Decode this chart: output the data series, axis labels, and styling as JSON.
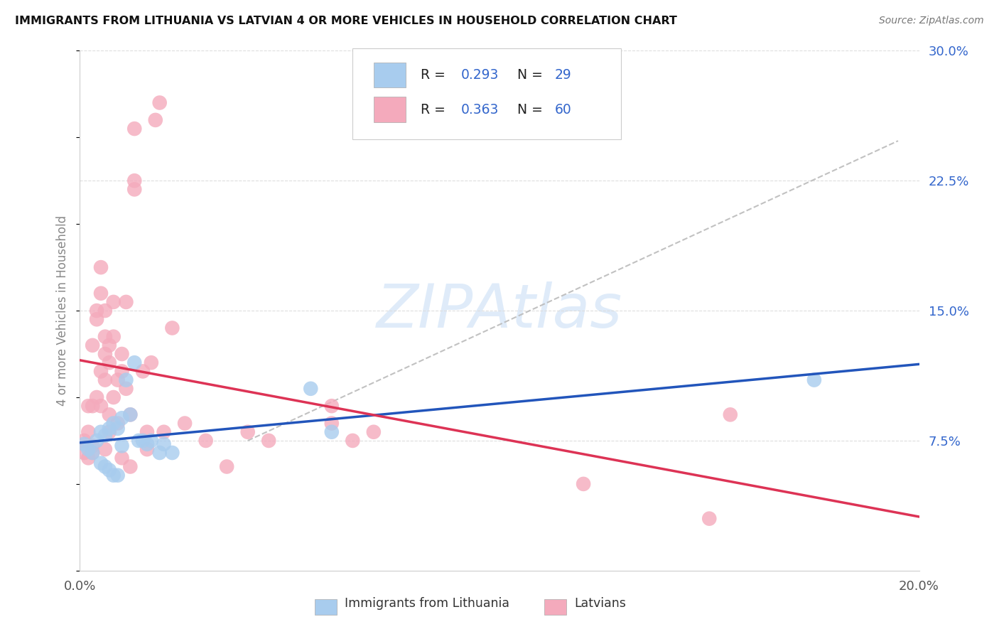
{
  "title": "IMMIGRANTS FROM LITHUANIA VS LATVIAN 4 OR MORE VEHICLES IN HOUSEHOLD CORRELATION CHART",
  "source": "Source: ZipAtlas.com",
  "ylabel": "4 or more Vehicles in Household",
  "xlim": [
    0.0,
    0.2
  ],
  "ylim": [
    0.0,
    0.3
  ],
  "xticks": [
    0.0,
    0.05,
    0.1,
    0.15,
    0.2
  ],
  "xtick_labels": [
    "0.0%",
    "",
    "",
    "",
    "20.0%"
  ],
  "yticks_right": [
    0.075,
    0.15,
    0.225,
    0.3
  ],
  "ytick_labels_right": [
    "7.5%",
    "15.0%",
    "22.5%",
    "30.0%"
  ],
  "blue_label": "Immigrants from Lithuania",
  "pink_label": "Latvians",
  "blue_R": "0.293",
  "blue_N": "29",
  "pink_R": "0.363",
  "pink_N": "60",
  "blue_color": "#A8CCEE",
  "pink_color": "#F4AABC",
  "blue_line_color": "#2255BB",
  "pink_line_color": "#DD3355",
  "stat_text_color": "#3366CC",
  "watermark": "ZIPAtlas",
  "dash_color": "#BBBBBB",
  "blue_x": [
    0.001,
    0.002,
    0.003,
    0.004,
    0.005,
    0.005,
    0.006,
    0.006,
    0.007,
    0.007,
    0.008,
    0.008,
    0.009,
    0.009,
    0.01,
    0.01,
    0.011,
    0.012,
    0.013,
    0.014,
    0.015,
    0.016,
    0.017,
    0.019,
    0.02,
    0.022,
    0.055,
    0.06,
    0.175
  ],
  "blue_y": [
    0.073,
    0.07,
    0.068,
    0.075,
    0.08,
    0.062,
    0.078,
    0.06,
    0.082,
    0.058,
    0.085,
    0.055,
    0.082,
    0.055,
    0.088,
    0.072,
    0.11,
    0.09,
    0.12,
    0.075,
    0.075,
    0.073,
    0.075,
    0.068,
    0.073,
    0.068,
    0.105,
    0.08,
    0.11
  ],
  "pink_x": [
    0.001,
    0.001,
    0.002,
    0.002,
    0.002,
    0.003,
    0.003,
    0.003,
    0.003,
    0.004,
    0.004,
    0.004,
    0.005,
    0.005,
    0.005,
    0.005,
    0.006,
    0.006,
    0.006,
    0.006,
    0.006,
    0.007,
    0.007,
    0.007,
    0.007,
    0.008,
    0.008,
    0.008,
    0.009,
    0.009,
    0.01,
    0.01,
    0.01,
    0.011,
    0.011,
    0.012,
    0.012,
    0.013,
    0.013,
    0.013,
    0.015,
    0.016,
    0.016,
    0.017,
    0.018,
    0.019,
    0.02,
    0.022,
    0.025,
    0.03,
    0.035,
    0.04,
    0.045,
    0.06,
    0.06,
    0.065,
    0.07,
    0.12,
    0.15,
    0.155
  ],
  "pink_y": [
    0.075,
    0.068,
    0.08,
    0.065,
    0.095,
    0.072,
    0.068,
    0.13,
    0.095,
    0.1,
    0.15,
    0.145,
    0.115,
    0.095,
    0.16,
    0.175,
    0.135,
    0.125,
    0.11,
    0.15,
    0.07,
    0.13,
    0.12,
    0.09,
    0.08,
    0.135,
    0.155,
    0.1,
    0.11,
    0.085,
    0.125,
    0.115,
    0.065,
    0.155,
    0.105,
    0.09,
    0.06,
    0.22,
    0.225,
    0.255,
    0.115,
    0.08,
    0.07,
    0.12,
    0.26,
    0.27,
    0.08,
    0.14,
    0.085,
    0.075,
    0.06,
    0.08,
    0.075,
    0.085,
    0.095,
    0.075,
    0.08,
    0.05,
    0.03,
    0.09
  ]
}
